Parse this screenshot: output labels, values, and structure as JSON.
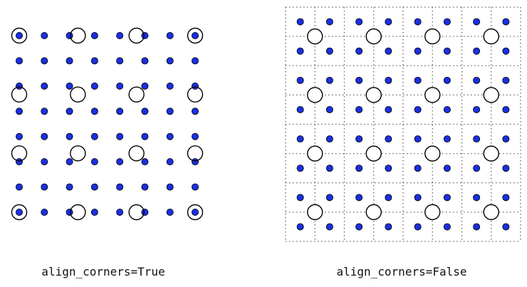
{
  "panels": [
    {
      "caption": "align_corners=True",
      "input_grid": [
        4,
        4
      ],
      "output_grid": [
        8,
        8
      ],
      "align_corners": true,
      "show_pixel_grid": false
    },
    {
      "caption": "align_corners=False",
      "input_grid": [
        4,
        4
      ],
      "output_grid": [
        8,
        8
      ],
      "align_corners": false,
      "show_pixel_grid": true
    }
  ],
  "legend": {
    "input_marker": "open-circle",
    "output_marker": "filled-dot"
  },
  "colors": {
    "output_fill": "#1a2fe0",
    "output_stroke": "#000000",
    "input_stroke": "#000000",
    "grid_line": "#666666",
    "background": "#ffffff"
  }
}
